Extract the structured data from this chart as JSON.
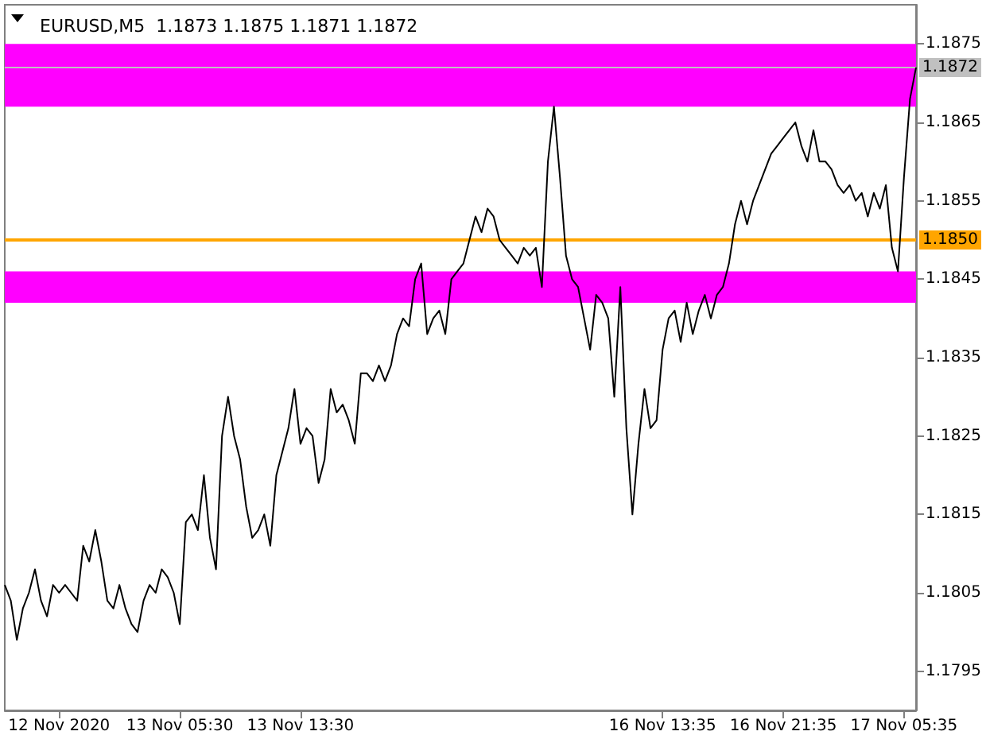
{
  "chart_data": {
    "type": "line",
    "title": "EURUSD,M5  1.1873 1.1875 1.1871 1.1872",
    "categories": [
      null,
      null,
      null,
      null,
      null,
      null,
      null,
      null,
      null,
      "12 Nov 2020",
      null,
      null,
      null,
      null,
      null,
      null,
      null,
      null,
      null,
      null,
      null,
      null,
      null,
      null,
      null,
      null,
      null,
      null,
      null,
      "13 Nov 05:30",
      null,
      null,
      null,
      null,
      null,
      null,
      null,
      null,
      null,
      null,
      null,
      null,
      null,
      null,
      null,
      null,
      null,
      null,
      null,
      "13 Nov 13:30",
      null,
      null,
      null,
      null,
      null,
      null,
      null,
      null,
      null,
      null,
      null,
      null,
      null,
      null,
      null,
      null,
      null,
      null,
      null,
      null,
      null,
      null,
      null,
      null,
      null,
      null,
      null,
      null,
      null,
      null,
      null,
      null,
      null,
      null,
      null,
      null,
      null,
      null,
      null,
      null,
      null,
      null,
      null,
      null,
      null,
      null,
      null,
      null,
      null,
      null,
      null,
      null,
      null,
      null,
      null,
      null,
      null,
      null,
      null,
      "16 Nov 13:35",
      null,
      null,
      null,
      null,
      null,
      null,
      null,
      null,
      null,
      null,
      null,
      null,
      null,
      null,
      null,
      null,
      null,
      null,
      null,
      "16 Nov 21:35",
      null,
      null,
      null,
      null,
      null,
      null,
      null,
      null,
      null,
      null,
      null,
      null,
      null,
      null,
      null,
      null,
      null,
      null,
      null,
      "17 Nov 05:35",
      null,
      null
    ],
    "series": [
      {
        "color": "#000000",
        "values": [
          1.1806,
          1.1804,
          1.1799,
          1.1803,
          1.1805,
          1.1808,
          1.1804,
          1.1802,
          1.1806,
          1.1805,
          1.1806,
          1.1805,
          1.1804,
          1.1811,
          1.1809,
          1.1813,
          1.1809,
          1.1804,
          1.1803,
          1.1806,
          1.1803,
          1.1801,
          1.18,
          1.1804,
          1.1806,
          1.1805,
          1.1808,
          1.1807,
          1.1805,
          1.1801,
          1.1814,
          1.1815,
          1.1813,
          1.182,
          1.1812,
          1.1808,
          1.1825,
          1.183,
          1.1825,
          1.1822,
          1.1816,
          1.1812,
          1.1813,
          1.1815,
          1.1811,
          1.182,
          1.1823,
          1.1826,
          1.1831,
          1.1824,
          1.1826,
          1.1825,
          1.1819,
          1.1822,
          1.1831,
          1.1828,
          1.1829,
          1.1827,
          1.1824,
          1.1833,
          1.1833,
          1.1832,
          1.1834,
          1.1832,
          1.1834,
          1.1838,
          1.184,
          1.1839,
          1.1845,
          1.1847,
          1.1838,
          1.184,
          1.1841,
          1.1838,
          1.1845,
          1.1846,
          1.1847,
          1.185,
          1.1853,
          1.1851,
          1.1854,
          1.1853,
          1.185,
          1.1849,
          1.1848,
          1.1847,
          1.1849,
          1.1848,
          1.1849,
          1.1844,
          1.186,
          1.1867,
          1.1858,
          1.1848,
          1.1845,
          1.1844,
          1.184,
          1.1836,
          1.1843,
          1.1842,
          1.184,
          1.183,
          1.1844,
          1.1826,
          1.1815,
          1.1824,
          1.1831,
          1.1826,
          1.1827,
          1.1836,
          1.184,
          1.1841,
          1.1837,
          1.1842,
          1.1838,
          1.1841,
          1.1843,
          1.184,
          1.1843,
          1.1844,
          1.1847,
          1.1852,
          1.1855,
          1.1852,
          1.1855,
          1.1857,
          1.1859,
          1.1861,
          1.1862,
          1.1863,
          1.1864,
          1.1865,
          1.1862,
          1.186,
          1.1864,
          1.186,
          1.186,
          1.1859,
          1.1857,
          1.1856,
          1.1857,
          1.1855,
          1.1856,
          1.1853,
          1.1856,
          1.1854,
          1.1857,
          1.1849,
          1.1846,
          1.1858,
          1.1868,
          1.1872
        ]
      }
    ],
    "ylim": [
      1.179,
      1.188
    ],
    "yticks": [
      1.1795,
      1.1805,
      1.1815,
      1.1825,
      1.1835,
      1.1845,
      1.1855,
      1.1865,
      1.1875
    ],
    "ref_lines": [
      {
        "axis": "y",
        "value": 1.1872,
        "label": "1.1872",
        "color": "#c0c0c0"
      },
      {
        "axis": "y",
        "value": 1.185,
        "label": "1.1850",
        "color": "#ffa500"
      }
    ],
    "bands": [
      {
        "axis": "y",
        "from": 1.1867,
        "to": 1.1875,
        "color": "#ff00ff"
      },
      {
        "axis": "y",
        "from": 1.1842,
        "to": 1.1846,
        "color": "#ff00ff"
      }
    ],
    "grid": false,
    "marker": "none",
    "line_style": "solid"
  }
}
